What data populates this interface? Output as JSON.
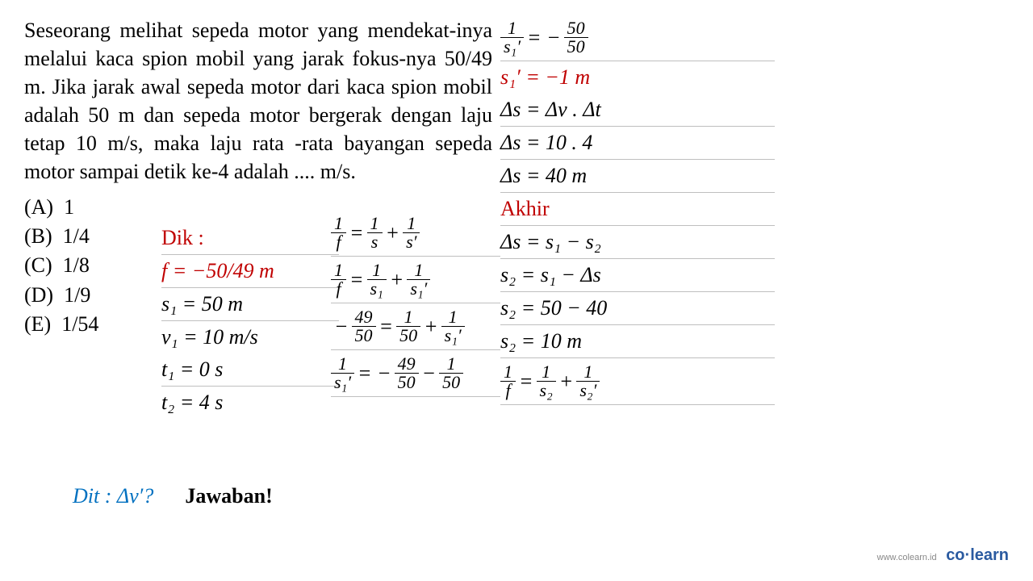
{
  "question": "Seseorang melihat sepeda motor yang mendekat-inya melalui kaca spion mobil yang jarak fokus-nya 50/49 m. Jika jarak awal sepeda motor dari kaca spion mobil adalah 50 m dan sepeda motor bergerak dengan laju tetap 10 m/s, maka laju rata -rata bayangan sepeda motor sampai detik ke-4 adalah .... m/s.",
  "answers": {
    "A": "1",
    "B": "1/4",
    "C": "1/8",
    "D": "1/9",
    "E": "1/54"
  },
  "dik": {
    "label": "Dik :",
    "f": "f = −50/49 m",
    "s1": "s₁ = 50 m",
    "v1": "v₁ = 10 m/s",
    "t1": "t₁ = 0 s",
    "t2": "t₂ = 4 s"
  },
  "dit": {
    "label": "Dit : Δv′?",
    "answer": "Jawaban!"
  },
  "mid": {
    "eq1_lhs_num": "1",
    "eq1_lhs_den": "f",
    "eq1_r1_num": "1",
    "eq1_r1_den": "s",
    "eq1_r2_num": "1",
    "eq1_r2_den": "s′",
    "eq2_r1_num": "1",
    "eq2_r1_den": "s₁",
    "eq2_r2_num": "1",
    "eq2_r2_den": "s₁′",
    "eq3_l_num": "49",
    "eq3_l_den": "50",
    "eq3_r1_num": "1",
    "eq3_r1_den": "50",
    "eq3_r2_num": "1",
    "eq3_r2_den": "s₁′",
    "eq4_l_num": "1",
    "eq4_l_den": "s₁′",
    "eq4_r1_num": "49",
    "eq4_r1_den": "50",
    "eq4_r2_num": "1",
    "eq4_r2_den": "50"
  },
  "right": {
    "eq1_l_num": "1",
    "eq1_l_den": "s₁′",
    "eq1_r_num": "50",
    "eq1_r_den": "50",
    "eq2": "s₁′ = −1 m",
    "eq3": "Δs = Δv . Δt",
    "eq4": "Δs = 10 . 4",
    "eq5": "Δs = 40 m",
    "akhir": "Akhir",
    "eq6": "Δs = s₁ − s₂",
    "eq7": "s₂ = s₁ − Δs",
    "eq8": "s₂ = 50 − 40",
    "eq9": "s₂ = 10 m",
    "eq10_l_num": "1",
    "eq10_l_den": "f",
    "eq10_r1_num": "1",
    "eq10_r1_den": "s₂",
    "eq10_r2_num": "1",
    "eq10_r2_den": "s₂′"
  },
  "branding": {
    "url": "www.colearn.id",
    "brand": "co·learn"
  },
  "colors": {
    "red": "#c00000",
    "blue": "#0070c0",
    "black": "#000000",
    "rule": "#bfbfbf",
    "brand": "#2a5aa0"
  }
}
